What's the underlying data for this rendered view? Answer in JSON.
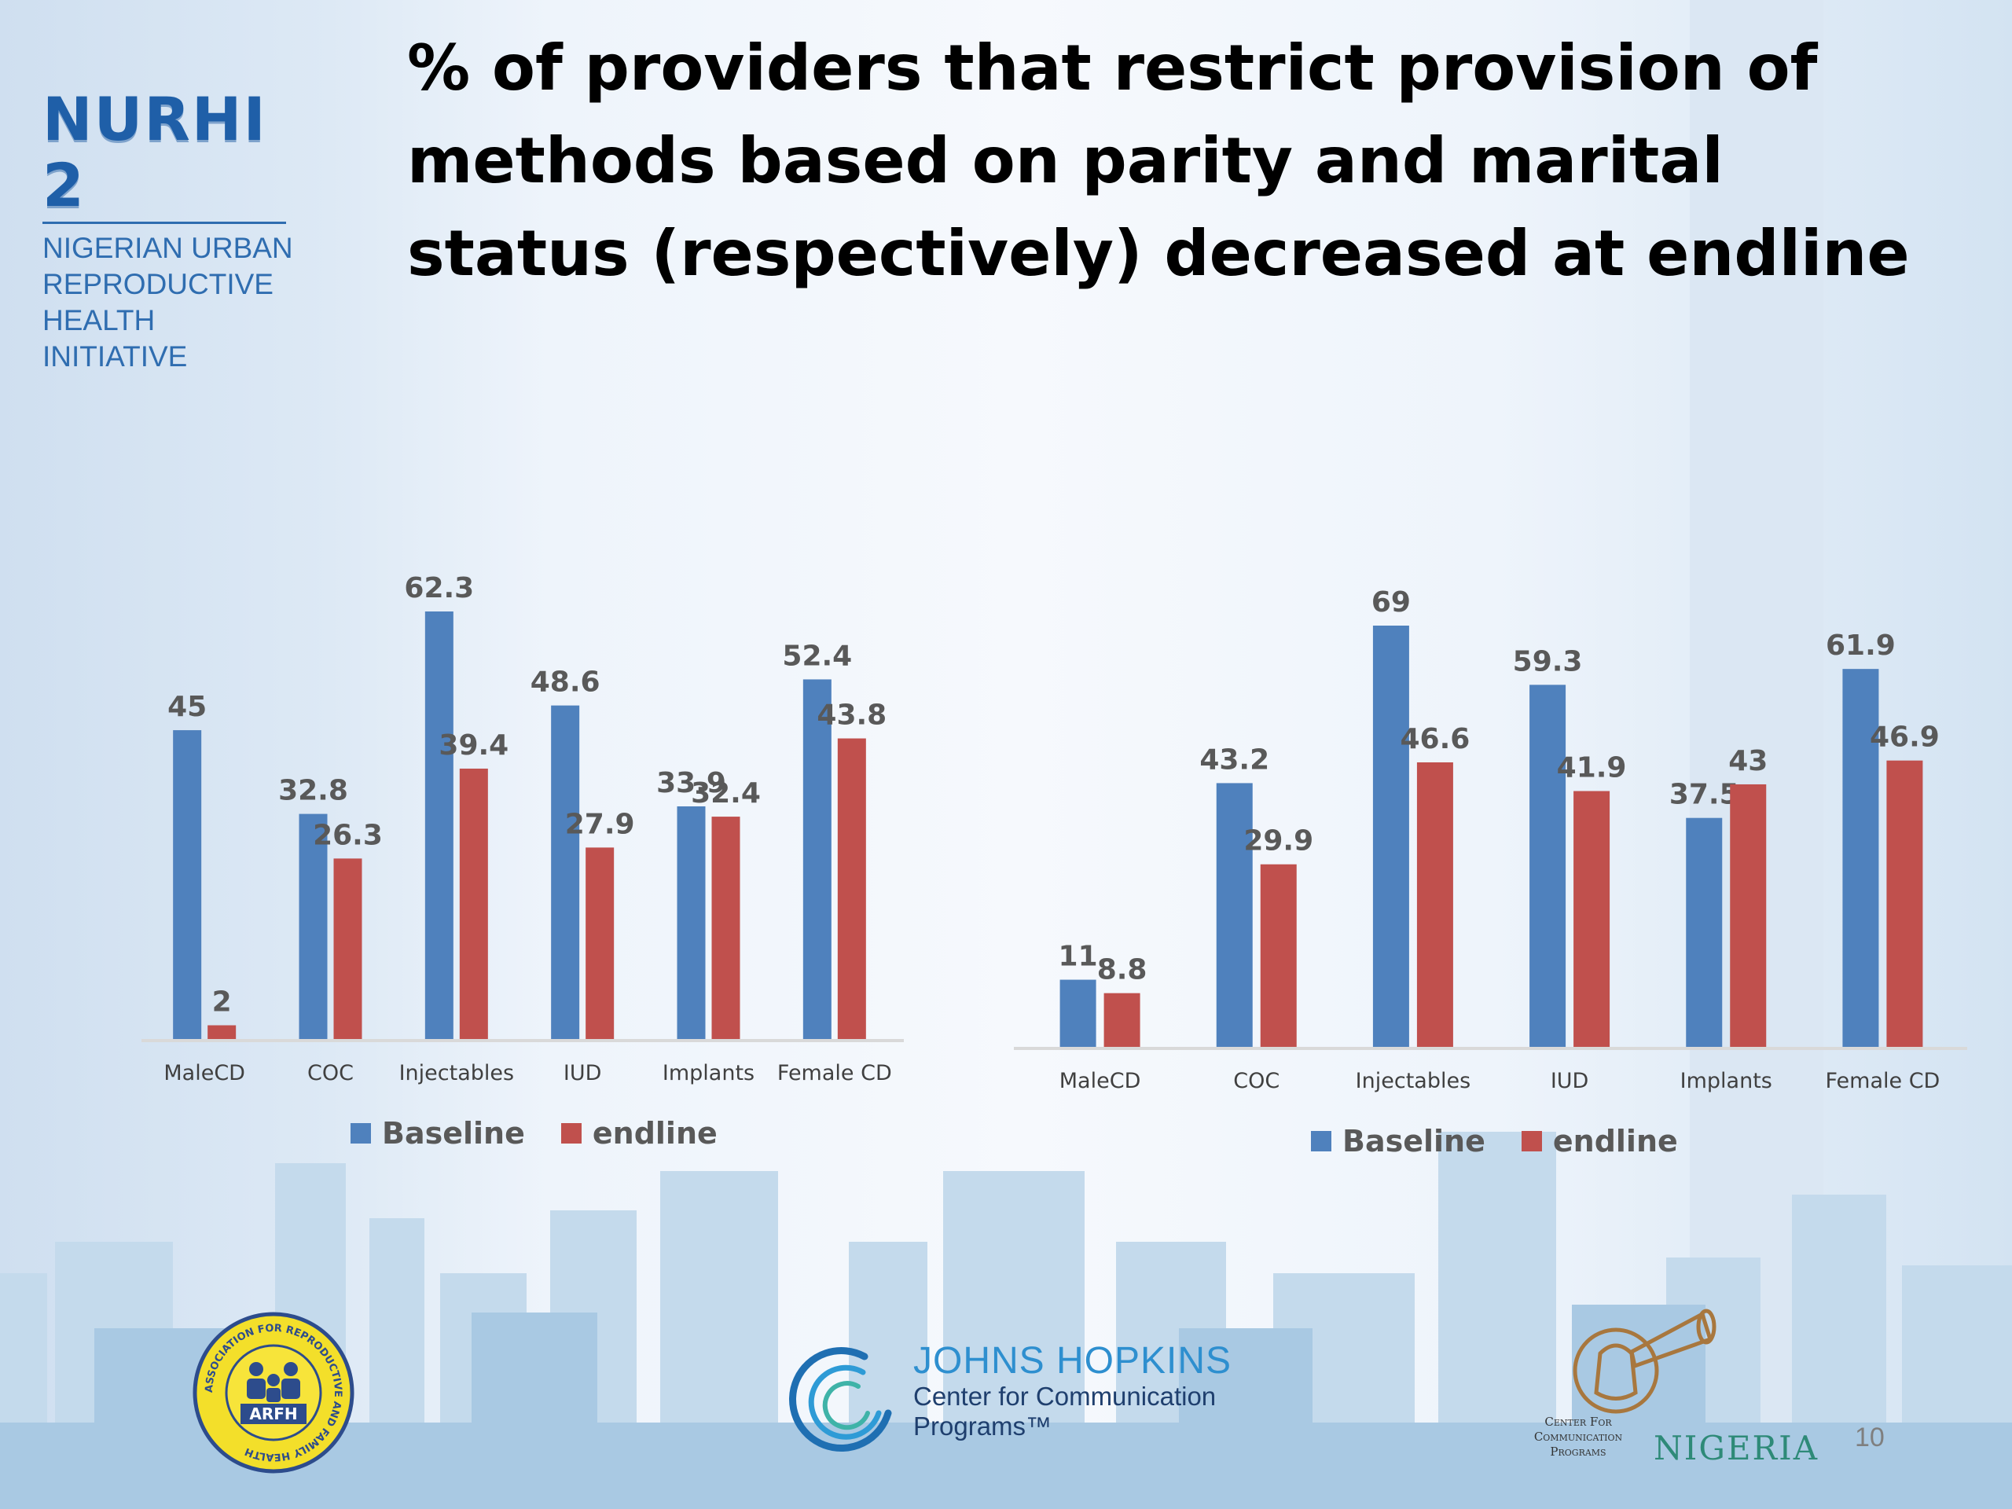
{
  "slide": {
    "title": "% of providers that restrict provision of methods based on parity and marital status (respectively) decreased at endline",
    "page_number": "10"
  },
  "logos": {
    "nurhi": {
      "name": "NURHI 2",
      "line1": "NIGERIAN URBAN",
      "line2": "REPRODUCTIVE",
      "line3": "HEALTH INITIATIVE"
    },
    "arfh": {
      "abbr": "ARFH",
      "ring_text": "ASSOCIATION FOR REPRODUCTIVE AND FAMILY HEALTH"
    },
    "jhu": {
      "line1": "JOHNS HOPKINS",
      "line2": "Center for Communication",
      "line3": "Programs™"
    },
    "ccp_nigeria": {
      "small1": "Center For",
      "small2": "Communication",
      "small3": "Programs",
      "big": "NIGERIA"
    }
  },
  "colors": {
    "baseline": "#4f81bd",
    "endline": "#c0504d",
    "label": "#595959",
    "axis": "#d9d9d9"
  },
  "chart_data": [
    {
      "type": "bar",
      "categories": [
        "MaleCD",
        "COC",
        "Injectables",
        "IUD",
        "Implants",
        "Female CD"
      ],
      "series": [
        {
          "name": "Baseline",
          "values": [
            45,
            32.8,
            62.3,
            48.6,
            33.9,
            52.4
          ]
        },
        {
          "name": "endline",
          "values": [
            2,
            26.3,
            39.4,
            27.9,
            32.4,
            43.8
          ]
        }
      ],
      "ylim": [
        0,
        62.3
      ],
      "data_labels": true,
      "grid": false,
      "legend_position": "bottom"
    },
    {
      "type": "bar",
      "categories": [
        "MaleCD",
        "COC",
        "Injectables",
        "IUD",
        "Implants",
        "Female CD"
      ],
      "series": [
        {
          "name": "Baseline",
          "values": [
            11,
            43.2,
            69,
            59.3,
            37.5,
            61.9
          ]
        },
        {
          "name": "endline",
          "values": [
            8.8,
            29.9,
            46.6,
            41.9,
            43,
            46.9
          ]
        }
      ],
      "ylim": [
        0,
        69
      ],
      "data_labels": true,
      "grid": false,
      "legend_position": "bottom"
    }
  ]
}
